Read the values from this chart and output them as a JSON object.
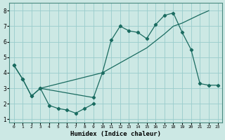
{
  "xlabel": "Humidex (Indice chaleur)",
  "bg_color": "#cce8e4",
  "grid_color": "#99cccc",
  "line_color": "#1a6b60",
  "xlim": [
    -0.5,
    23.5
  ],
  "ylim": [
    0.8,
    8.5
  ],
  "yticks": [
    1,
    2,
    3,
    4,
    5,
    6,
    7,
    8
  ],
  "xticks": [
    0,
    1,
    2,
    3,
    4,
    5,
    6,
    7,
    8,
    9,
    10,
    11,
    12,
    13,
    14,
    15,
    16,
    17,
    18,
    19,
    20,
    21,
    22,
    23
  ],
  "curve_bottom_x": [
    0,
    1,
    2,
    3,
    4,
    5,
    6,
    7,
    8,
    9
  ],
  "curve_bottom_y": [
    4.5,
    3.6,
    2.5,
    3.0,
    1.9,
    1.7,
    1.6,
    1.4,
    1.7,
    2.0
  ],
  "curve_main_x": [
    0,
    1,
    2,
    3,
    9,
    10,
    11,
    12,
    13,
    14,
    15,
    16,
    17,
    18,
    19,
    20,
    21,
    22,
    23
  ],
  "curve_main_y": [
    4.5,
    3.6,
    2.5,
    3.0,
    2.4,
    4.0,
    6.1,
    7.0,
    6.7,
    6.6,
    6.2,
    7.1,
    7.7,
    7.85,
    6.6,
    5.5,
    3.3,
    3.2,
    3.2
  ],
  "curve_diagonal_x": [
    3,
    10,
    15,
    17,
    18,
    19,
    21,
    22
  ],
  "curve_diagonal_y": [
    3.0,
    4.0,
    5.6,
    6.5,
    7.0,
    7.2,
    7.75,
    8.0
  ]
}
